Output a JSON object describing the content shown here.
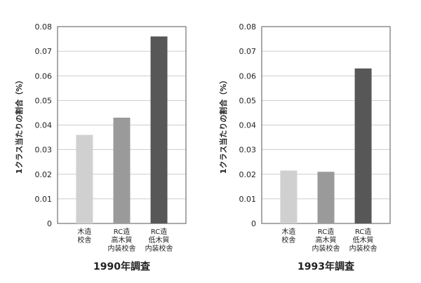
{
  "chart_data": [
    {
      "type": "bar",
      "title": "1990年調査",
      "ylabel": "1クラス当たりの割合（%）",
      "ylim": [
        0,
        0.08
      ],
      "yticks": [
        "0",
        "0.01",
        "0.02",
        "0.03",
        "0.04",
        "0.05",
        "0.06",
        "0.07",
        "0.08"
      ],
      "categories": [
        [
          "木造",
          "校舎"
        ],
        [
          "RC造",
          "高木質",
          "内装校舎"
        ],
        [
          "RC造",
          "低木質",
          "内装校舎"
        ]
      ],
      "values": [
        0.036,
        0.043,
        0.076
      ],
      "colors": [
        "#d0d0d0",
        "#9a9a9a",
        "#575757"
      ],
      "grid": true
    },
    {
      "type": "bar",
      "title": "1993年調査",
      "ylabel": "1クラス当たりの割合（%）",
      "ylim": [
        0,
        0.08
      ],
      "yticks": [
        "0",
        "0.01",
        "0.02",
        "0.03",
        "0.04",
        "0.05",
        "0.06",
        "0.07",
        "0.08"
      ],
      "categories": [
        [
          "木造",
          "校舎"
        ],
        [
          "RC造",
          "高木質",
          "内装校舎"
        ],
        [
          "RC造",
          "低木質",
          "内装校舎"
        ]
      ],
      "values": [
        0.0215,
        0.021,
        0.063
      ],
      "colors": [
        "#d0d0d0",
        "#9a9a9a",
        "#575757"
      ],
      "grid": true
    }
  ]
}
